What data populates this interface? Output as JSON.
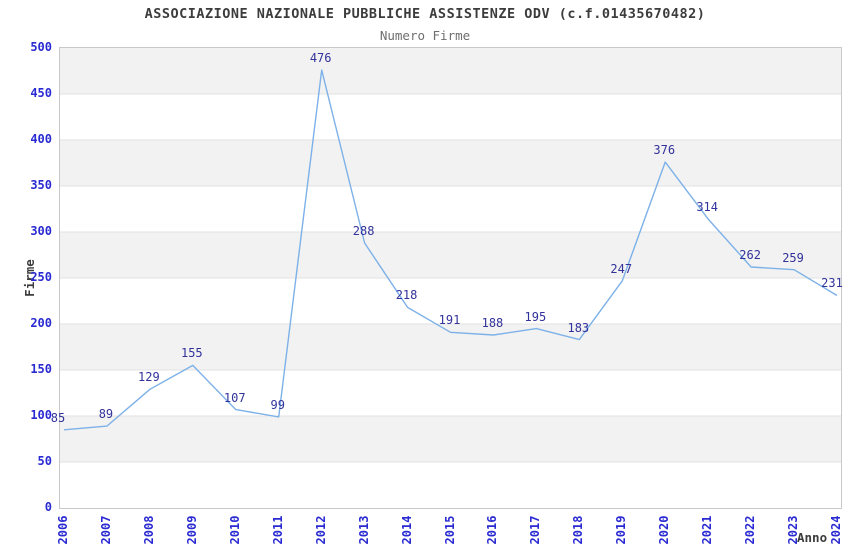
{
  "title": "ASSOCIAZIONE NAZIONALE PUBBLICHE ASSISTENZE ODV (c.f.01435670482)",
  "subtitle": "Numero Firme",
  "chart_data": {
    "type": "line",
    "title": "ASSOCIAZIONE NAZIONALE PUBBLICHE ASSISTENZE ODV (c.f.01435670482)",
    "subtitle": "Numero Firme",
    "xlabel": "Anno",
    "ylabel": "Firme",
    "x": [
      2006,
      2007,
      2008,
      2009,
      2010,
      2011,
      2012,
      2013,
      2014,
      2015,
      2016,
      2017,
      2018,
      2019,
      2020,
      2021,
      2022,
      2023,
      2024
    ],
    "values": [
      85,
      89,
      129,
      155,
      107,
      99,
      476,
      288,
      218,
      191,
      188,
      195,
      183,
      247,
      376,
      314,
      262,
      259,
      231
    ],
    "ylim": [
      0,
      500
    ],
    "ytick_step": 50,
    "yticks": [
      0,
      50,
      100,
      150,
      200,
      250,
      300,
      350,
      400,
      450,
      500
    ],
    "grid": "horizontal-bands",
    "legend": "none",
    "colors": {
      "line": "#7db1e8",
      "data_label": "#32329b",
      "tick_label": "#2a2ad2",
      "band_gray": "#f2f2f2",
      "band_white": "#ffffff",
      "grid_line": "#e2e2e2",
      "plot_border": "#c9c9c9",
      "title_text": "#3c3c3c",
      "subtitle_text": "#6e6e6e"
    }
  }
}
